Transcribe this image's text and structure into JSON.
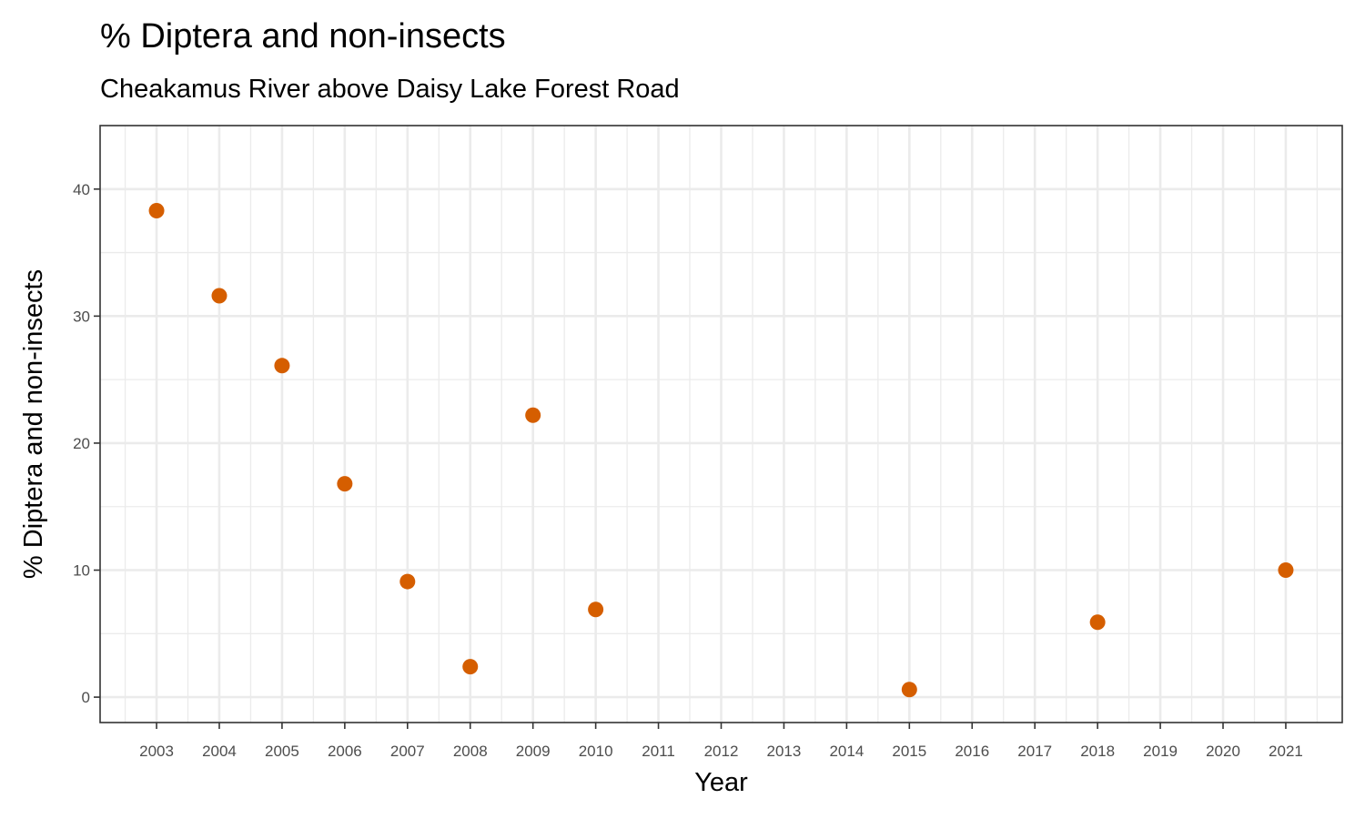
{
  "chart_data": {
    "type": "scatter",
    "title": "% Diptera and non-insects",
    "subtitle": "Cheakamus River above Daisy Lake Forest Road",
    "xlabel": "Year",
    "ylabel": "% Diptera and non-insects",
    "xlim": [
      2002.1,
      2021.9
    ],
    "ylim": [
      -2.0,
      45.0
    ],
    "xticks": [
      2003,
      2004,
      2005,
      2006,
      2007,
      2008,
      2009,
      2010,
      2011,
      2012,
      2013,
      2014,
      2015,
      2016,
      2017,
      2018,
      2019,
      2020,
      2021
    ],
    "yticks": [
      0,
      10,
      20,
      30,
      40
    ],
    "grid": true,
    "point_color": "#D55E00",
    "points": [
      {
        "x": 2003,
        "y": 38.3
      },
      {
        "x": 2004,
        "y": 31.6
      },
      {
        "x": 2005,
        "y": 26.1
      },
      {
        "x": 2006,
        "y": 16.8
      },
      {
        "x": 2007,
        "y": 9.1
      },
      {
        "x": 2008,
        "y": 2.4
      },
      {
        "x": 2009,
        "y": 22.2
      },
      {
        "x": 2010,
        "y": 6.9
      },
      {
        "x": 2015,
        "y": 0.6
      },
      {
        "x": 2018,
        "y": 5.9
      },
      {
        "x": 2021,
        "y": 10.0
      }
    ]
  }
}
